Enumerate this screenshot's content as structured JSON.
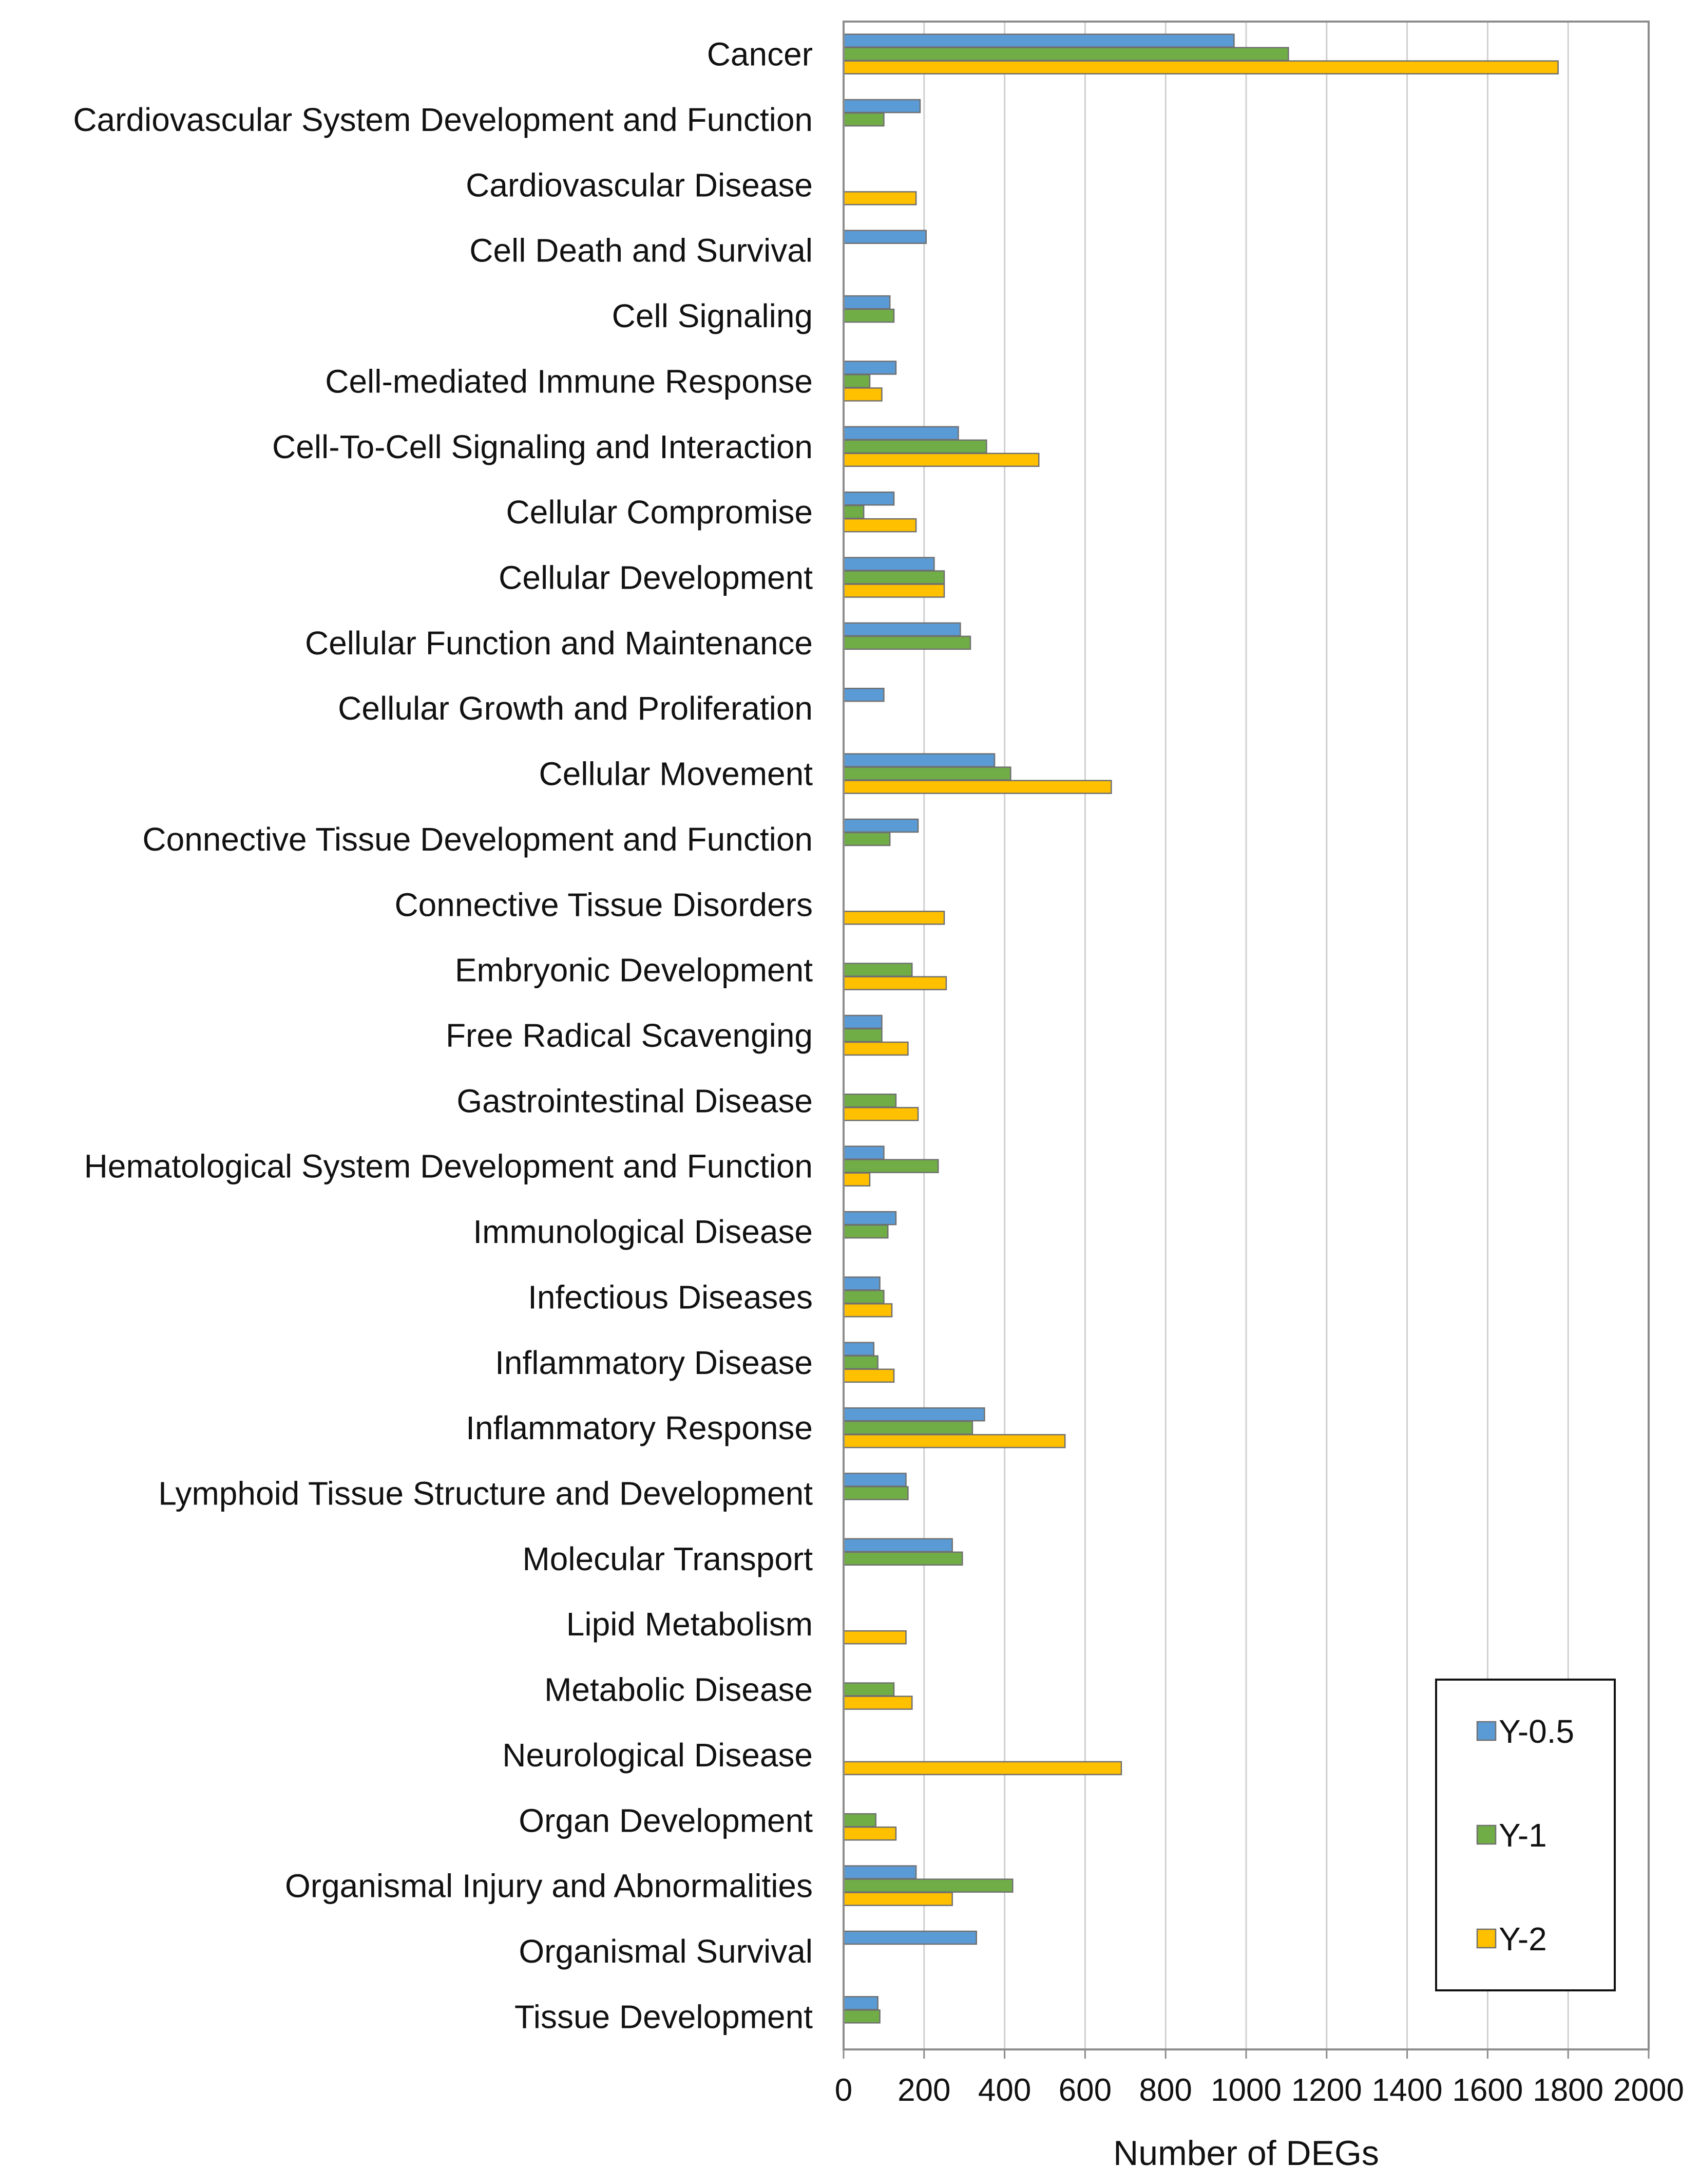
{
  "chart_data": {
    "type": "bar",
    "orientation": "horizontal",
    "title": "",
    "xlabel": "Number of DEGs",
    "ylabel": "",
    "xlim": [
      0,
      2000
    ],
    "xticks": [
      0,
      200,
      400,
      600,
      800,
      1000,
      1200,
      1400,
      1600,
      1800,
      2000
    ],
    "grid": "vertical",
    "legend_position": "bottom-right",
    "categories": [
      "Cancer",
      "Cardiovascular System Development and Function",
      "Cardiovascular Disease",
      "Cell Death and Survival",
      "Cell Signaling",
      "Cell-mediated Immune Response",
      "Cell-To-Cell Signaling and Interaction",
      "Cellular Compromise",
      "Cellular Development",
      "Cellular Function and Maintenance",
      "Cellular Growth and Proliferation",
      "Cellular Movement",
      "Connective Tissue Development and Function",
      "Connective Tissue Disorders",
      "Embryonic Development",
      "Free Radical Scavenging",
      "Gastrointestinal Disease",
      "Hematological System Development and Function",
      "Immunological Disease",
      "Infectious Diseases",
      "Inflammatory Disease",
      "Inflammatory Response",
      "Lymphoid Tissue Structure and Development",
      "Molecular Transport",
      "Lipid Metabolism",
      "Metabolic Disease",
      "Neurological Disease",
      "Organ Development",
      "Organismal Injury and Abnormalities",
      "Organismal Survival",
      "Tissue Development"
    ],
    "series": [
      {
        "name": "Y-0.5",
        "color": "#5B9BD5",
        "values": [
          970,
          190,
          0,
          205,
          115,
          130,
          285,
          125,
          225,
          290,
          100,
          375,
          185,
          0,
          0,
          95,
          0,
          100,
          130,
          90,
          75,
          350,
          155,
          270,
          0,
          0,
          0,
          0,
          180,
          330,
          85
        ]
      },
      {
        "name": "Y-1",
        "color": "#70AD47",
        "values": [
          1105,
          100,
          0,
          0,
          125,
          65,
          355,
          50,
          250,
          315,
          0,
          415,
          115,
          0,
          170,
          95,
          130,
          235,
          110,
          100,
          85,
          320,
          160,
          295,
          0,
          125,
          0,
          80,
          420,
          0,
          90
        ]
      },
      {
        "name": "Y-2",
        "color": "#FFC000",
        "values": [
          1775,
          0,
          180,
          0,
          0,
          95,
          485,
          180,
          250,
          0,
          0,
          665,
          0,
          250,
          255,
          160,
          185,
          65,
          0,
          120,
          125,
          550,
          0,
          0,
          155,
          170,
          690,
          130,
          270,
          0,
          0
        ]
      }
    ]
  }
}
